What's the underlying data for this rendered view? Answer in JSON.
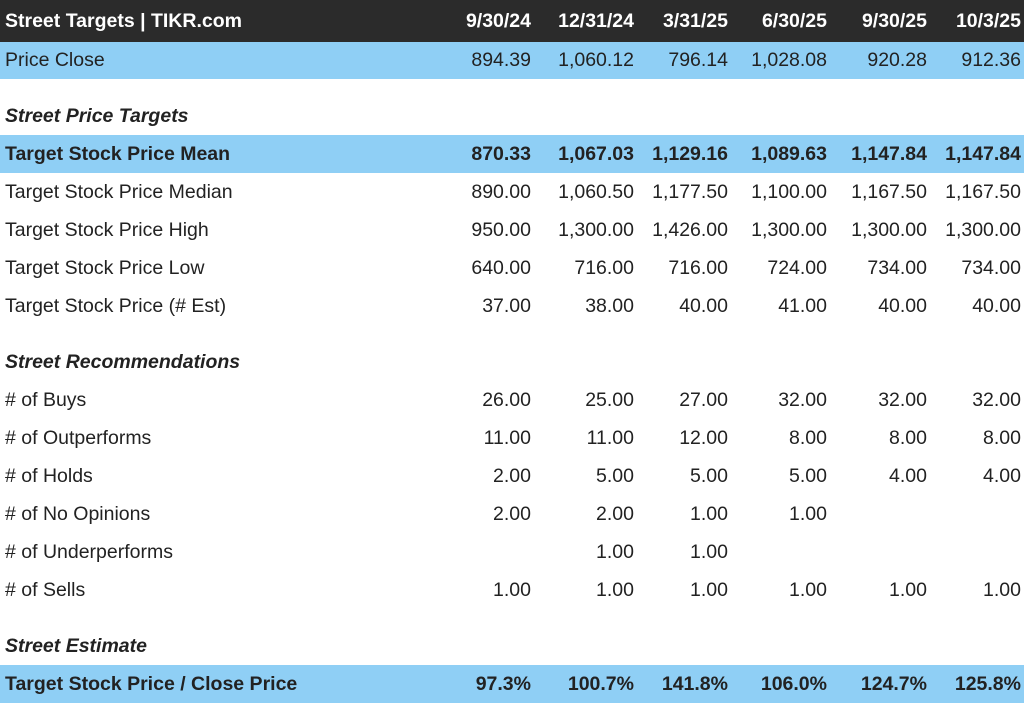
{
  "header": {
    "title": "Street Targets | TIKR.com",
    "periods": [
      "9/30/24",
      "12/31/24",
      "3/31/25",
      "6/30/25",
      "9/30/25",
      "10/3/25"
    ]
  },
  "price_close": {
    "label": "Price Close",
    "values": [
      "894.39",
      "1,060.12",
      "796.14",
      "1,028.08",
      "920.28",
      "912.36"
    ]
  },
  "street_price_targets": {
    "title": "Street Price Targets",
    "rows": [
      {
        "label": "Target Stock Price Mean",
        "values": [
          "870.33",
          "1,067.03",
          "1,129.16",
          "1,089.63",
          "1,147.84",
          "1,147.84"
        ]
      },
      {
        "label": "Target Stock Price Median",
        "values": [
          "890.00",
          "1,060.50",
          "1,177.50",
          "1,100.00",
          "1,167.50",
          "1,167.50"
        ]
      },
      {
        "label": "Target Stock Price High",
        "values": [
          "950.00",
          "1,300.00",
          "1,426.00",
          "1,300.00",
          "1,300.00",
          "1,300.00"
        ]
      },
      {
        "label": "Target Stock Price Low",
        "values": [
          "640.00",
          "716.00",
          "716.00",
          "724.00",
          "734.00",
          "734.00"
        ]
      },
      {
        "label": "Target Stock Price (# Est)",
        "values": [
          "37.00",
          "38.00",
          "40.00",
          "41.00",
          "40.00",
          "40.00"
        ]
      }
    ]
  },
  "street_recommendations": {
    "title": "Street Recommendations",
    "rows": [
      {
        "label": "# of Buys",
        "values": [
          "26.00",
          "25.00",
          "27.00",
          "32.00",
          "32.00",
          "32.00"
        ]
      },
      {
        "label": "# of Outperforms",
        "values": [
          "11.00",
          "11.00",
          "12.00",
          "8.00",
          "8.00",
          "8.00"
        ]
      },
      {
        "label": "# of Holds",
        "values": [
          "2.00",
          "5.00",
          "5.00",
          "5.00",
          "4.00",
          "4.00"
        ]
      },
      {
        "label": "# of No Opinions",
        "values": [
          "2.00",
          "2.00",
          "1.00",
          "1.00",
          "",
          ""
        ]
      },
      {
        "label": "# of Underperforms",
        "values": [
          "",
          "1.00",
          "1.00",
          "",
          "",
          ""
        ]
      },
      {
        "label": "# of Sells",
        "values": [
          "1.00",
          "1.00",
          "1.00",
          "1.00",
          "1.00",
          "1.00"
        ]
      }
    ]
  },
  "street_estimate": {
    "title": "Street Estimate",
    "rows": [
      {
        "label": "Target Stock Price / Close Price",
        "values": [
          "97.3%",
          "100.7%",
          "141.8%",
          "106.0%",
          "124.7%",
          "125.8%"
        ]
      }
    ]
  },
  "colors": {
    "header_bg": "#2b2b2b",
    "highlight_bg": "#8fcff5",
    "text": "#222222"
  }
}
